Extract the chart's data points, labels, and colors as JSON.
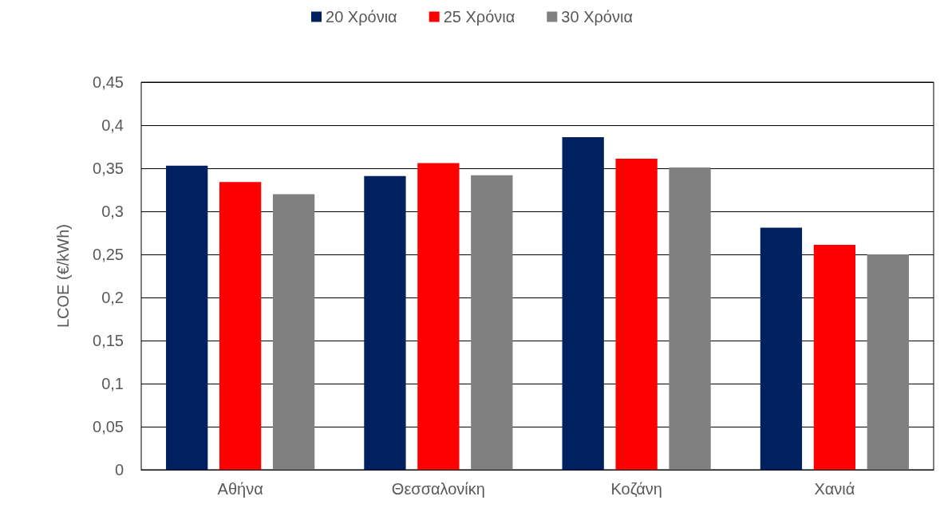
{
  "chart_data": {
    "type": "bar",
    "ylabel": "LCOE (€/kWh)",
    "categories": [
      "Αθήνα",
      "Θεσσαλονίκη",
      "Κοζάνη",
      "Χανιά"
    ],
    "series": [
      {
        "name": "20 Χρόνια",
        "color": "#002060",
        "values": [
          0.353,
          0.341,
          0.386,
          0.281
        ]
      },
      {
        "name": "25 Χρόνια",
        "color": "#ff0000",
        "values": [
          0.334,
          0.356,
          0.361,
          0.261
        ]
      },
      {
        "name": "30 Χρόνια",
        "color": "#808080",
        "values": [
          0.32,
          0.342,
          0.351,
          0.25
        ]
      }
    ],
    "ylim": [
      0,
      0.45
    ],
    "yticks": [
      0,
      {
        "value": 0.05,
        "label": "0,05"
      },
      {
        "value": 0.1,
        "label": "0,1"
      },
      {
        "value": 0.15,
        "label": "0,15"
      },
      {
        "value": 0.2,
        "label": "0,2"
      },
      {
        "value": 0.25,
        "label": "0,25"
      },
      {
        "value": 0.3,
        "label": "0,3"
      },
      {
        "value": 0.35,
        "label": "0,35"
      },
      {
        "value": 0.4,
        "label": "0,4"
      },
      {
        "value": 0.45,
        "label": "0,45"
      }
    ],
    "grid": "y",
    "legend": "top"
  }
}
